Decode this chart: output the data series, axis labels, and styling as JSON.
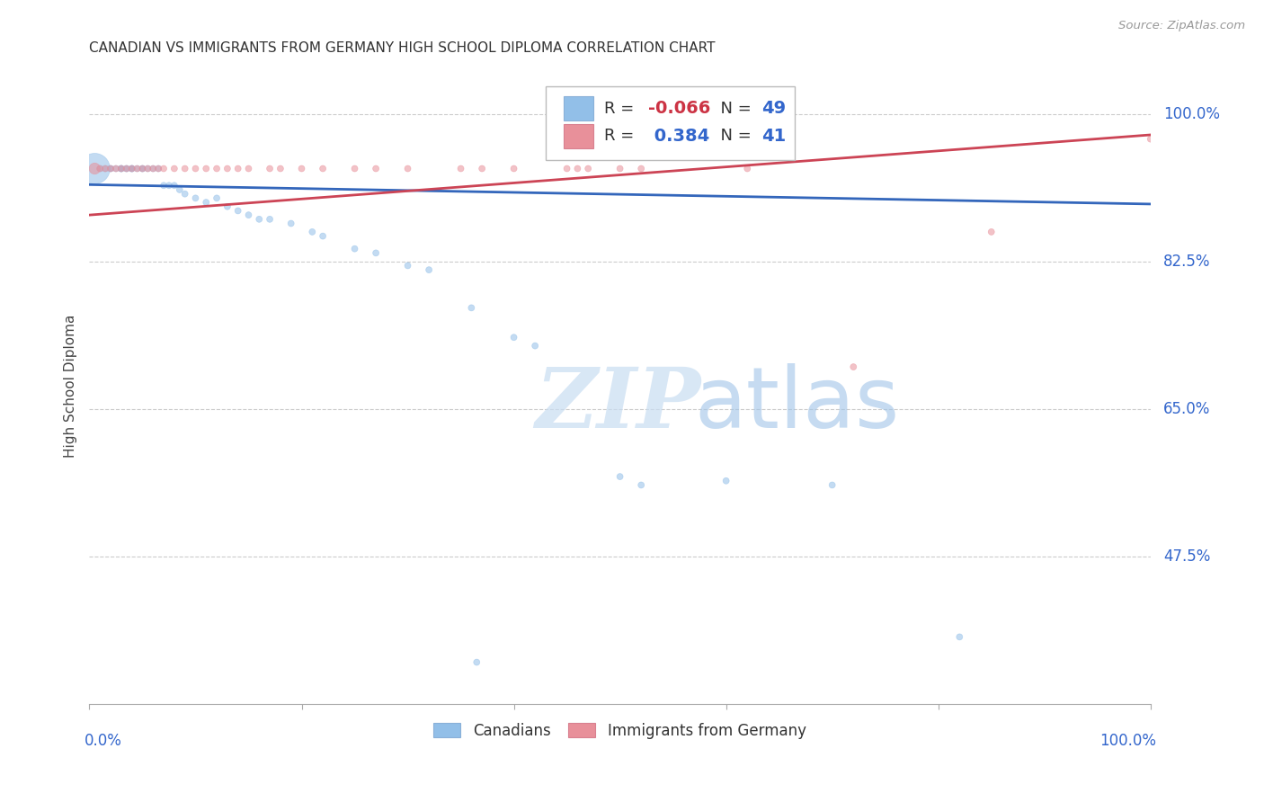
{
  "title": "CANADIAN VS IMMIGRANTS FROM GERMANY HIGH SCHOOL DIPLOMA CORRELATION CHART",
  "source": "Source: ZipAtlas.com",
  "ylabel": "High School Diploma",
  "ytick_labels": [
    "100.0%",
    "82.5%",
    "65.0%",
    "47.5%"
  ],
  "ytick_values": [
    1.0,
    0.825,
    0.65,
    0.475
  ],
  "xlim": [
    0.0,
    1.0
  ],
  "ylim": [
    0.3,
    1.055
  ],
  "legend_r_canadian": "-0.066",
  "legend_n_canadian": "49",
  "legend_r_germany": "0.384",
  "legend_n_germany": "41",
  "canadian_color": "#92bfe8",
  "germany_color": "#e8909a",
  "canadian_line_color": "#3366bb",
  "germany_line_color": "#cc4455",
  "watermark_zip": "ZIP",
  "watermark_atlas": "atlas",
  "background_color": "#ffffff",
  "canadian_trend_x": [
    0.0,
    1.0
  ],
  "canadian_trend_y": [
    0.916,
    0.893
  ],
  "germany_trend_x": [
    0.0,
    1.0
  ],
  "germany_trend_y": [
    0.88,
    0.975
  ],
  "canadian_x": [
    0.005,
    0.01,
    0.015,
    0.02,
    0.02,
    0.025,
    0.03,
    0.03,
    0.03,
    0.035,
    0.035,
    0.04,
    0.04,
    0.04,
    0.045,
    0.05,
    0.05,
    0.055,
    0.06,
    0.065,
    0.07,
    0.075,
    0.08,
    0.085,
    0.09,
    0.1,
    0.11,
    0.12,
    0.13,
    0.14,
    0.15,
    0.16,
    0.17,
    0.19,
    0.21,
    0.22,
    0.25,
    0.27,
    0.3,
    0.32,
    0.36,
    0.4,
    0.42,
    0.5,
    0.52,
    0.6,
    0.7,
    0.82,
    0.365
  ],
  "canadian_y": [
    0.935,
    0.935,
    0.935,
    0.935,
    0.935,
    0.935,
    0.935,
    0.935,
    0.935,
    0.935,
    0.935,
    0.935,
    0.935,
    0.935,
    0.935,
    0.935,
    0.935,
    0.935,
    0.935,
    0.935,
    0.915,
    0.915,
    0.915,
    0.91,
    0.905,
    0.9,
    0.895,
    0.9,
    0.89,
    0.885,
    0.88,
    0.875,
    0.875,
    0.87,
    0.86,
    0.855,
    0.84,
    0.835,
    0.82,
    0.815,
    0.77,
    0.735,
    0.725,
    0.57,
    0.56,
    0.565,
    0.56,
    0.38,
    0.35
  ],
  "canadian_size": [
    600,
    25,
    25,
    25,
    25,
    25,
    25,
    25,
    25,
    25,
    25,
    25,
    25,
    25,
    25,
    25,
    25,
    25,
    25,
    25,
    25,
    25,
    25,
    25,
    25,
    25,
    25,
    25,
    25,
    25,
    25,
    25,
    25,
    25,
    25,
    25,
    25,
    25,
    25,
    25,
    25,
    25,
    25,
    25,
    25,
    25,
    25,
    25,
    25
  ],
  "germany_x": [
    0.005,
    0.01,
    0.015,
    0.02,
    0.025,
    0.03,
    0.035,
    0.04,
    0.045,
    0.05,
    0.055,
    0.06,
    0.065,
    0.07,
    0.08,
    0.09,
    0.1,
    0.11,
    0.12,
    0.13,
    0.14,
    0.15,
    0.17,
    0.18,
    0.2,
    0.22,
    0.25,
    0.27,
    0.3,
    0.35,
    0.37,
    0.4,
    0.45,
    0.46,
    0.47,
    0.5,
    0.52,
    0.62,
    0.72,
    0.85,
    1.0
  ],
  "germany_y": [
    0.935,
    0.935,
    0.935,
    0.935,
    0.935,
    0.935,
    0.935,
    0.935,
    0.935,
    0.935,
    0.935,
    0.935,
    0.935,
    0.935,
    0.935,
    0.935,
    0.935,
    0.935,
    0.935,
    0.935,
    0.935,
    0.935,
    0.935,
    0.935,
    0.935,
    0.935,
    0.935,
    0.935,
    0.935,
    0.935,
    0.935,
    0.935,
    0.935,
    0.935,
    0.935,
    0.935,
    0.935,
    0.935,
    0.7,
    0.86,
    0.97
  ],
  "germany_size": [
    80,
    25,
    25,
    25,
    25,
    25,
    25,
    25,
    25,
    25,
    25,
    25,
    25,
    25,
    25,
    25,
    25,
    25,
    25,
    25,
    25,
    25,
    25,
    25,
    25,
    25,
    25,
    25,
    25,
    25,
    25,
    25,
    25,
    25,
    25,
    25,
    25,
    25,
    25,
    25,
    25
  ]
}
